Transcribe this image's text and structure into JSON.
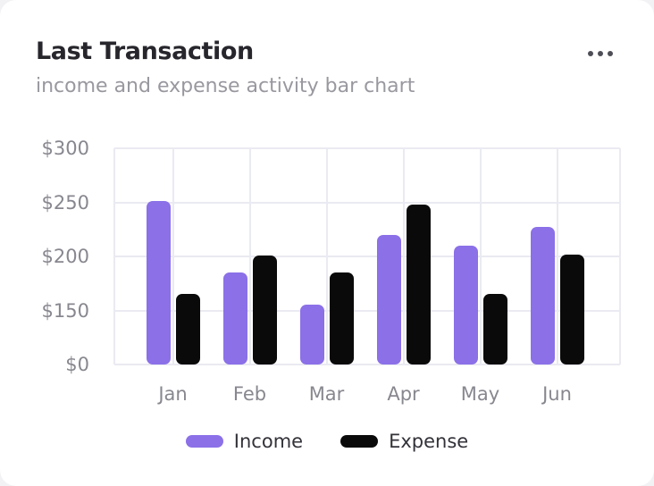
{
  "card": {
    "title": "Last Transaction",
    "subtitle": "income and expense activity bar chart",
    "menu_icon": "ellipsis-horizontal-icon"
  },
  "chart_data": {
    "type": "bar",
    "title": "Last Transaction",
    "subtitle": "income and expense activity bar chart",
    "categories": [
      "Jan",
      "Feb",
      "Mar",
      "Apr",
      "May",
      "Jun"
    ],
    "series": [
      {
        "name": "Income",
        "color": "#8b70e8",
        "values": [
          251,
          185,
          155,
          220,
          210,
          227
        ]
      },
      {
        "name": "Expense",
        "color": "#0a0a0a",
        "values": [
          165,
          201,
          185,
          248,
          165,
          202
        ]
      }
    ],
    "y_ticks": [
      0,
      150,
      200,
      250,
      300
    ],
    "y_tick_labels": [
      "$0",
      "$150",
      "$200",
      "$250",
      "$300"
    ],
    "y_axis_note": "ticks are equally spaced (non-linear scale between $0 and $150)",
    "xlabel": "",
    "ylabel": "",
    "grid": true,
    "grid_color": "#eaeaf2",
    "legend_position": "bottom",
    "colors": {
      "income": "#8b70e8",
      "expense": "#0a0a0a"
    }
  }
}
